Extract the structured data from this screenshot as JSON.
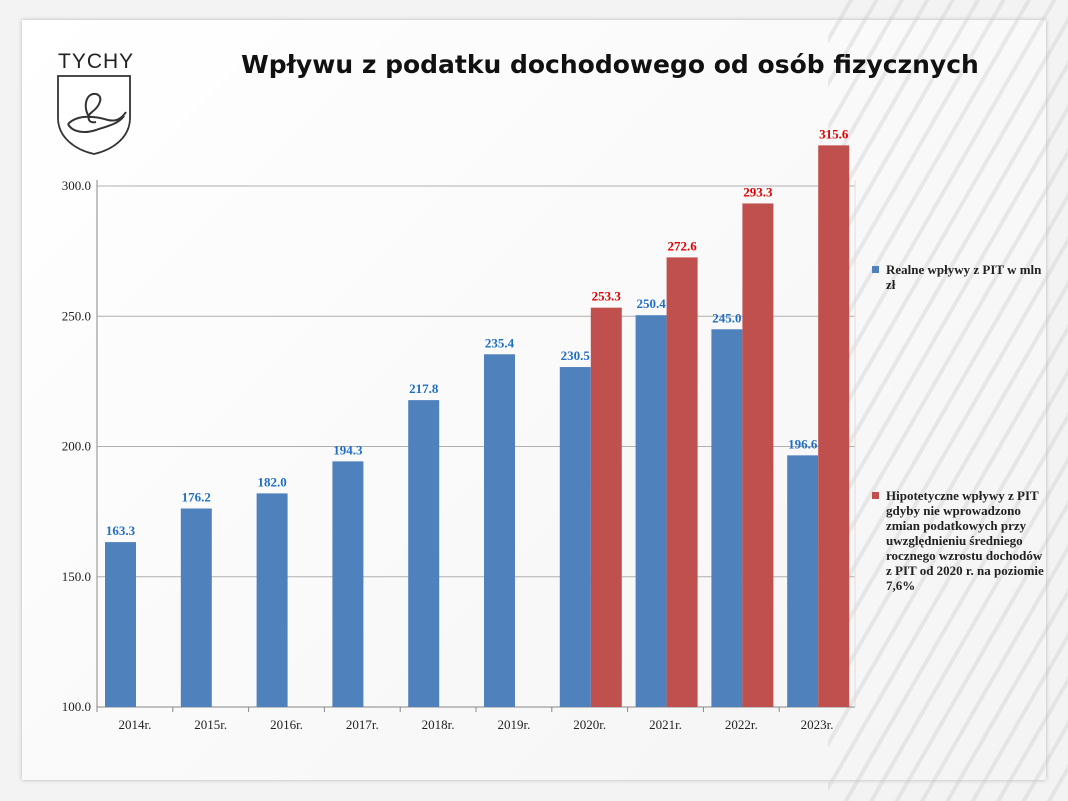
{
  "logo": {
    "text": "TYCHY"
  },
  "colors": {
    "real": "#4F81BD",
    "hypo": "#C0504D",
    "real_label": "#1F6FC5",
    "hypo_label": "#E00000"
  },
  "chart_data": {
    "type": "bar",
    "title": "Wpływu z podatku dochodowego od osób fizycznych",
    "categories": [
      "2014r.",
      "2015r.",
      "2016r.",
      "2017r.",
      "2018r.",
      "2019r.",
      "2020r.",
      "2021r.",
      "2022r.",
      "2023r."
    ],
    "series": [
      {
        "name": "Realne wpływy z PIT w mln zł",
        "values": [
          163.3,
          176.2,
          182.0,
          194.3,
          217.8,
          235.4,
          230.5,
          250.4,
          245.0,
          196.6
        ]
      },
      {
        "name": "Hipotetyczne wpływy z PIT gdyby nie wprowadzono zmian podatkowych przy uwzględnieniu średniego rocznego wzrostu dochodów z PIT od 2020 r. na poziomie 7,6%",
        "values": [
          null,
          null,
          null,
          null,
          null,
          null,
          253.3,
          272.6,
          293.3,
          315.6
        ]
      }
    ],
    "ylim": [
      100,
      300
    ],
    "yticks": [
      "100.0",
      "150.0",
      "200.0",
      "250.0",
      "300.0"
    ],
    "grid": true,
    "legend": "right"
  }
}
